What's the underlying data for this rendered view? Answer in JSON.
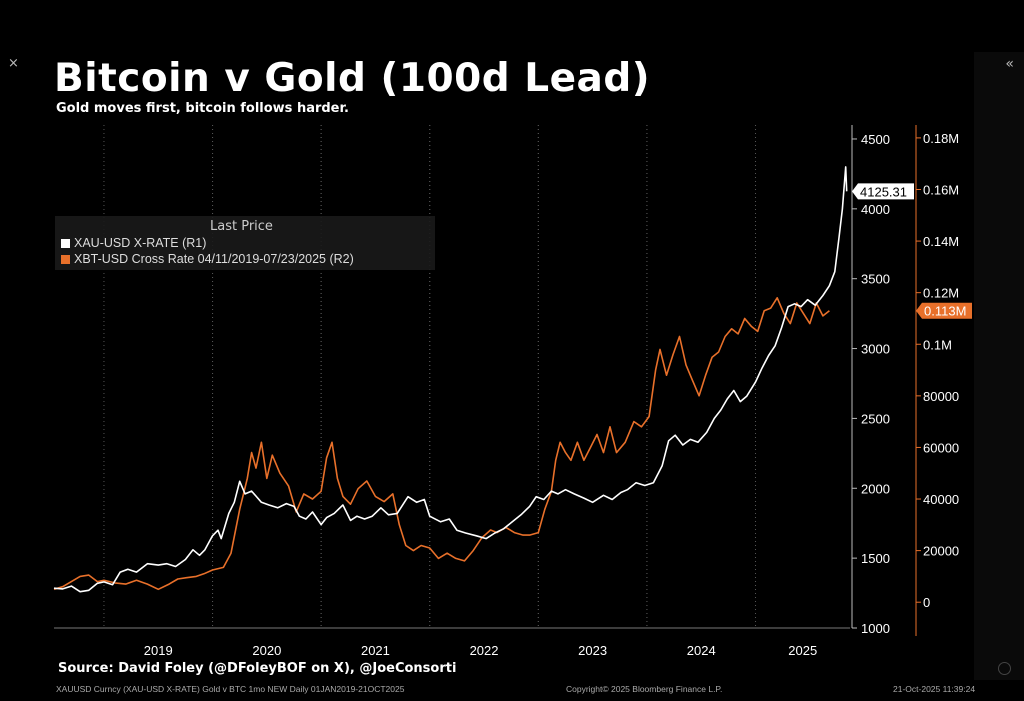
{
  "header": {
    "title": "Bitcoin v Gold (100d Lead)",
    "subtitle": "Gold moves first, bitcoin follows harder."
  },
  "legend": {
    "header": "Last Price",
    "items": [
      {
        "label": "XAU-USD X-RATE  (R1)",
        "color": "#ffffff"
      },
      {
        "label": "XBT-USD Cross Rate 04/11/2019-07/23/2025   (R2)",
        "color": "#e8702a"
      }
    ]
  },
  "footer": {
    "source": "Source: David Foley (@DFoleyBOF on X), @JoeConsorti",
    "left": "XAUUSD Curncy (XAU-USD X-RATE) Gold v BTC 1mo NEW Daily 01JAN2019-21OCT2025",
    "center": "Copyright© 2025 Bloomberg Finance L.P.",
    "right": "21-Oct-2025 11:39:24"
  },
  "controls": {
    "close_icon": "×",
    "collapse_icon": "«"
  },
  "chart_data": {
    "type": "line",
    "title": "Bitcoin v Gold (100d Lead)",
    "subtitle": "Gold moves first, bitcoin follows harder.",
    "x_ticks": [
      "2019",
      "2020",
      "2021",
      "2022",
      "2023",
      "2024",
      "2025"
    ],
    "x_range": [
      2018.54,
      2025.87
    ],
    "axes": {
      "r1": {
        "range": [
          1000,
          4600
        ],
        "ticks": [
          1000,
          1500,
          2000,
          2500,
          3000,
          3500,
          4000,
          4500
        ],
        "tick_labels": [
          "1000",
          "1500",
          "2000",
          "2500",
          "3000",
          "3500",
          "4000",
          "4500"
        ],
        "color": "#ffffff"
      },
      "r2": {
        "range": [
          -10000,
          185000
        ],
        "ticks": [
          0,
          20000,
          40000,
          60000,
          80000,
          100000,
          120000,
          140000,
          160000,
          180000
        ],
        "tick_labels": [
          "0",
          "20000",
          "40000",
          "60000",
          "80000",
          "0.1M",
          "0.12M",
          "0.14M",
          "0.16M",
          "0.18M"
        ],
        "color": "#e8702a"
      }
    },
    "last_values": [
      {
        "series": "XAU-USD X-RATE  (R1)",
        "label": "4125.31",
        "value": 4125.31
      },
      {
        "series": "XBT-USD Cross Rate 04/11/2019-07/23/2025   (R2)",
        "label": "0.113M",
        "value": 113000
      }
    ],
    "grid": "vertical-dotted",
    "legend_position": "top-left",
    "series": [
      {
        "name": "XAU-USD X-RATE  (R1)",
        "axis": "r1",
        "color": "#ffffff",
        "points": [
          [
            2018.54,
            1285
          ],
          [
            2018.62,
            1280
          ],
          [
            2018.7,
            1300
          ],
          [
            2018.78,
            1260
          ],
          [
            2018.86,
            1270
          ],
          [
            2018.94,
            1320
          ],
          [
            2019.0,
            1330
          ],
          [
            2019.08,
            1310
          ],
          [
            2019.15,
            1400
          ],
          [
            2019.22,
            1420
          ],
          [
            2019.3,
            1400
          ],
          [
            2019.4,
            1460
          ],
          [
            2019.5,
            1450
          ],
          [
            2019.58,
            1460
          ],
          [
            2019.66,
            1440
          ],
          [
            2019.75,
            1490
          ],
          [
            2019.82,
            1560
          ],
          [
            2019.88,
            1520
          ],
          [
            2019.93,
            1560
          ],
          [
            2020.0,
            1660
          ],
          [
            2020.05,
            1700
          ],
          [
            2020.08,
            1640
          ],
          [
            2020.15,
            1820
          ],
          [
            2020.2,
            1900
          ],
          [
            2020.25,
            2050
          ],
          [
            2020.3,
            1960
          ],
          [
            2020.36,
            1980
          ],
          [
            2020.45,
            1900
          ],
          [
            2020.52,
            1880
          ],
          [
            2020.6,
            1860
          ],
          [
            2020.68,
            1890
          ],
          [
            2020.75,
            1870
          ],
          [
            2020.8,
            1800
          ],
          [
            2020.86,
            1780
          ],
          [
            2020.92,
            1830
          ],
          [
            2021.0,
            1740
          ],
          [
            2021.05,
            1790
          ],
          [
            2021.12,
            1820
          ],
          [
            2021.2,
            1880
          ],
          [
            2021.27,
            1770
          ],
          [
            2021.33,
            1800
          ],
          [
            2021.4,
            1780
          ],
          [
            2021.47,
            1800
          ],
          [
            2021.55,
            1860
          ],
          [
            2021.62,
            1810
          ],
          [
            2021.7,
            1820
          ],
          [
            2021.8,
            1940
          ],
          [
            2021.88,
            1900
          ],
          [
            2021.95,
            1920
          ],
          [
            2022.0,
            1800
          ],
          [
            2022.1,
            1760
          ],
          [
            2022.18,
            1780
          ],
          [
            2022.25,
            1700
          ],
          [
            2022.33,
            1680
          ],
          [
            2022.43,
            1660
          ],
          [
            2022.52,
            1640
          ],
          [
            2022.6,
            1680
          ],
          [
            2022.68,
            1710
          ],
          [
            2022.76,
            1760
          ],
          [
            2022.84,
            1810
          ],
          [
            2022.92,
            1870
          ],
          [
            2022.98,
            1940
          ],
          [
            2023.05,
            1920
          ],
          [
            2023.12,
            1980
          ],
          [
            2023.18,
            1960
          ],
          [
            2023.25,
            1990
          ],
          [
            2023.33,
            1960
          ],
          [
            2023.42,
            1930
          ],
          [
            2023.5,
            1900
          ],
          [
            2023.6,
            1950
          ],
          [
            2023.68,
            1920
          ],
          [
            2023.76,
            1970
          ],
          [
            2023.82,
            1990
          ],
          [
            2023.9,
            2040
          ],
          [
            2023.98,
            2020
          ],
          [
            2024.06,
            2040
          ],
          [
            2024.14,
            2160
          ],
          [
            2024.2,
            2340
          ],
          [
            2024.26,
            2380
          ],
          [
            2024.33,
            2310
          ],
          [
            2024.4,
            2350
          ],
          [
            2024.47,
            2330
          ],
          [
            2024.55,
            2400
          ],
          [
            2024.62,
            2500
          ],
          [
            2024.68,
            2560
          ],
          [
            2024.74,
            2640
          ],
          [
            2024.8,
            2700
          ],
          [
            2024.86,
            2620
          ],
          [
            2024.92,
            2660
          ],
          [
            2025.0,
            2760
          ],
          [
            2025.06,
            2860
          ],
          [
            2025.12,
            2950
          ],
          [
            2025.18,
            3020
          ],
          [
            2025.24,
            3150
          ],
          [
            2025.3,
            3300
          ],
          [
            2025.36,
            3320
          ],
          [
            2025.42,
            3300
          ],
          [
            2025.48,
            3350
          ],
          [
            2025.55,
            3310
          ],
          [
            2025.62,
            3380
          ],
          [
            2025.68,
            3450
          ],
          [
            2025.73,
            3550
          ],
          [
            2025.77,
            3800
          ],
          [
            2025.8,
            4000
          ],
          [
            2025.83,
            4300
          ],
          [
            2025.84,
            4125.31
          ]
        ]
      },
      {
        "name": "XBT-USD Cross Rate 04/11/2019-07/23/2025   (R2)",
        "axis": "r2",
        "color": "#e8702a",
        "points": [
          [
            2018.54,
            5000
          ],
          [
            2018.62,
            6000
          ],
          [
            2018.7,
            8000
          ],
          [
            2018.78,
            10000
          ],
          [
            2018.86,
            10500
          ],
          [
            2018.94,
            8000
          ],
          [
            2019.0,
            8500
          ],
          [
            2019.1,
            7500
          ],
          [
            2019.2,
            7000
          ],
          [
            2019.3,
            8500
          ],
          [
            2019.4,
            7000
          ],
          [
            2019.5,
            5000
          ],
          [
            2019.6,
            7000
          ],
          [
            2019.68,
            9000
          ],
          [
            2019.76,
            9500
          ],
          [
            2019.85,
            10000
          ],
          [
            2019.92,
            11000
          ],
          [
            2020.0,
            12500
          ],
          [
            2020.1,
            13500
          ],
          [
            2020.17,
            19000
          ],
          [
            2020.25,
            36000
          ],
          [
            2020.32,
            48000
          ],
          [
            2020.36,
            58000
          ],
          [
            2020.4,
            52000
          ],
          [
            2020.45,
            62000
          ],
          [
            2020.5,
            48000
          ],
          [
            2020.55,
            57000
          ],
          [
            2020.62,
            50000
          ],
          [
            2020.7,
            45000
          ],
          [
            2020.77,
            35000
          ],
          [
            2020.84,
            42000
          ],
          [
            2020.92,
            40000
          ],
          [
            2021.0,
            43000
          ],
          [
            2021.05,
            56000
          ],
          [
            2021.1,
            62000
          ],
          [
            2021.15,
            48000
          ],
          [
            2021.2,
            41000
          ],
          [
            2021.27,
            38000
          ],
          [
            2021.34,
            44000
          ],
          [
            2021.42,
            47000
          ],
          [
            2021.5,
            41000
          ],
          [
            2021.58,
            39000
          ],
          [
            2021.66,
            42000
          ],
          [
            2021.72,
            30000
          ],
          [
            2021.78,
            22000
          ],
          [
            2021.85,
            20000
          ],
          [
            2021.92,
            22000
          ],
          [
            2022.0,
            21000
          ],
          [
            2022.08,
            17000
          ],
          [
            2022.16,
            19000
          ],
          [
            2022.24,
            17000
          ],
          [
            2022.32,
            16000
          ],
          [
            2022.4,
            20000
          ],
          [
            2022.48,
            25000
          ],
          [
            2022.56,
            28000
          ],
          [
            2022.62,
            27000
          ],
          [
            2022.7,
            29000
          ],
          [
            2022.78,
            27000
          ],
          [
            2022.86,
            26000
          ],
          [
            2022.92,
            26000
          ],
          [
            2023.0,
            27000
          ],
          [
            2023.06,
            36000
          ],
          [
            2023.12,
            43000
          ],
          [
            2023.16,
            55000
          ],
          [
            2023.2,
            62000
          ],
          [
            2023.25,
            58000
          ],
          [
            2023.3,
            55000
          ],
          [
            2023.36,
            62000
          ],
          [
            2023.42,
            55000
          ],
          [
            2023.48,
            60000
          ],
          [
            2023.54,
            65000
          ],
          [
            2023.6,
            58000
          ],
          [
            2023.66,
            68000
          ],
          [
            2023.72,
            58000
          ],
          [
            2023.8,
            62000
          ],
          [
            2023.88,
            70000
          ],
          [
            2023.95,
            68000
          ],
          [
            2024.02,
            72000
          ],
          [
            2024.08,
            90000
          ],
          [
            2024.12,
            98000
          ],
          [
            2024.18,
            88000
          ],
          [
            2024.24,
            96000
          ],
          [
            2024.3,
            103000
          ],
          [
            2024.36,
            92000
          ],
          [
            2024.42,
            86000
          ],
          [
            2024.48,
            80000
          ],
          [
            2024.54,
            88000
          ],
          [
            2024.6,
            95000
          ],
          [
            2024.66,
            97000
          ],
          [
            2024.72,
            103000
          ],
          [
            2024.78,
            106000
          ],
          [
            2024.84,
            104000
          ],
          [
            2024.9,
            110000
          ],
          [
            2024.96,
            107000
          ],
          [
            2025.02,
            105000
          ],
          [
            2025.08,
            113000
          ],
          [
            2025.14,
            114000
          ],
          [
            2025.2,
            118000
          ],
          [
            2025.26,
            112000
          ],
          [
            2025.32,
            108000
          ],
          [
            2025.38,
            116000
          ],
          [
            2025.44,
            112000
          ],
          [
            2025.5,
            108000
          ],
          [
            2025.56,
            116000
          ],
          [
            2025.62,
            111000
          ],
          [
            2025.68,
            113000
          ]
        ]
      }
    ]
  }
}
